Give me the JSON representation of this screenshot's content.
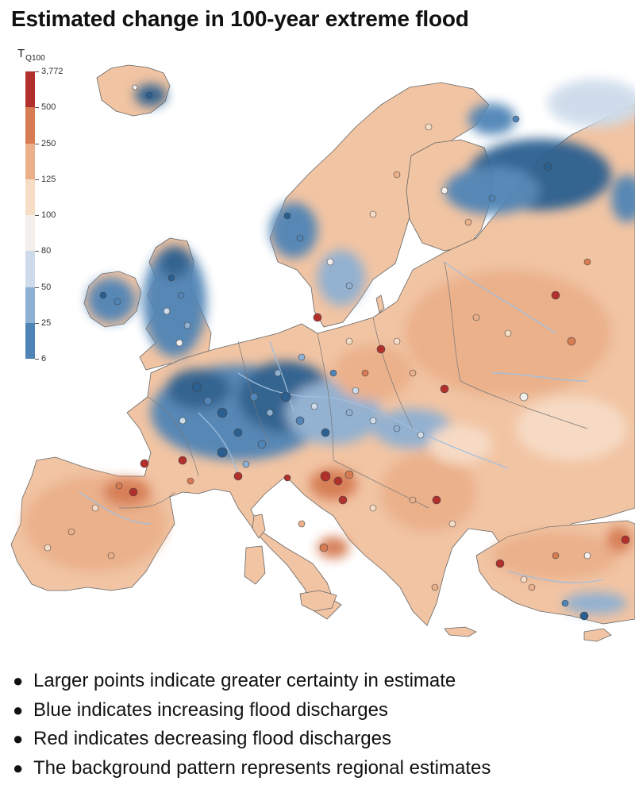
{
  "title": "Estimated change in 100-year extreme flood",
  "legend": {
    "heading": "T",
    "heading_sub": "Q100",
    "ticks": [
      "3,772",
      "500",
      "250",
      "125",
      "100",
      "80",
      "50",
      "25",
      "6"
    ],
    "colors": [
      "#b2302c",
      "#d67b52",
      "#eab08a",
      "#f7dcc6",
      "#f3efec",
      "#cddbea",
      "#8eb0d3",
      "#5084b6",
      "#2a5f90"
    ]
  },
  "notes": [
    "Larger points indicate greater certainty in estimate",
    "Blue indicates increasing flood discharges",
    "Red indicates decreasing flood discharges",
    "The background pattern represents regional estimates"
  ],
  "colors": {
    "increase_strong": "#2a5f90",
    "increase": "#5084b6",
    "increase_light": "#cddbea",
    "neutral": "#f3efec",
    "decrease_light": "#f7dcc6",
    "decrease": "#eab08a",
    "decrease_mid": "#d67b52",
    "decrease_strong": "#b2302c",
    "river": "#9fbfe0",
    "border": "#555555"
  }
}
